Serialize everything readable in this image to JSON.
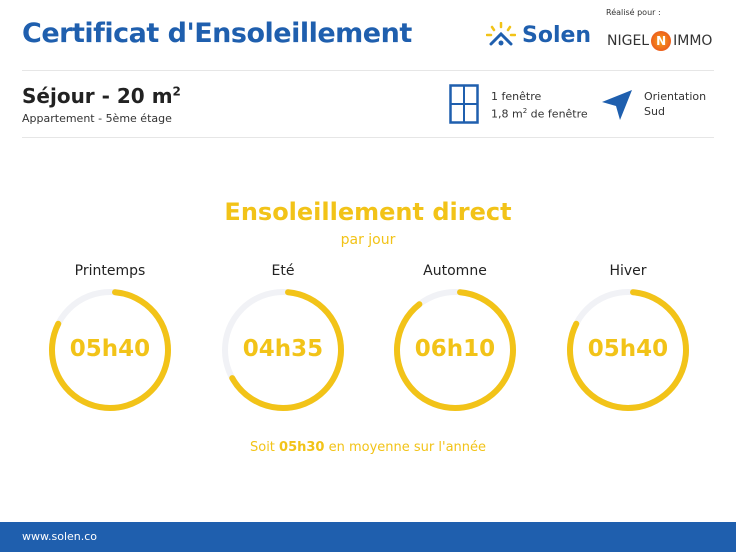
{
  "header": {
    "title": "Certificat d'Ensoleillement",
    "brand": "Solen",
    "realise_pour": "Réalisé pour :",
    "client_logo": "NIGEL IMMO"
  },
  "room": {
    "name": "Séjour - 20 m",
    "name_sup": "2",
    "subtitle": "Appartement - 5ème étage"
  },
  "window": {
    "icon": "window-icon",
    "line1": "1 fenêtre",
    "line2_a": "1,8 m",
    "line2_sup": "2",
    "line2_b": " de fenêtre"
  },
  "orientation": {
    "icon": "navigation-arrow-icon",
    "line1": "Orientation",
    "line2": "Sud"
  },
  "section": {
    "title": "Ensoleillement direct",
    "subtitle": "par jour"
  },
  "seasons": [
    {
      "label": "Printemps",
      "value": "05h40",
      "fraction": 0.81
    },
    {
      "label": "Eté",
      "value": "04h35",
      "fraction": 0.655
    },
    {
      "label": "Automne",
      "value": "06h10",
      "fraction": 0.88
    },
    {
      "label": "Hiver",
      "value": "05h40",
      "fraction": 0.81
    }
  ],
  "average": {
    "prefix": "Soit ",
    "value": "05h30",
    "suffix": " en moyenne sur l'année"
  },
  "footer": {
    "url": "www.solen.co"
  },
  "colors": {
    "brand_blue": "#1f5fae",
    "sun_yellow": "#f2c318",
    "ring_track": "#f1f2f6"
  }
}
